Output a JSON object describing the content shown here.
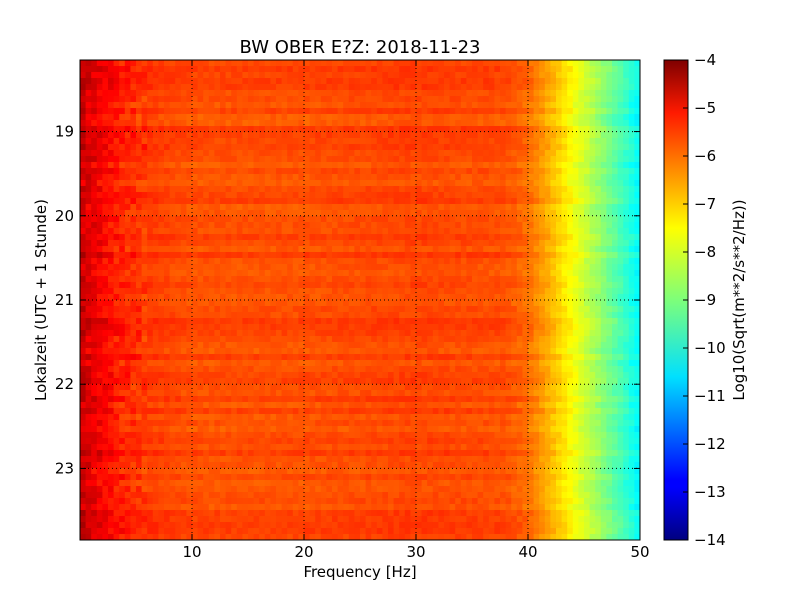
{
  "chart_data": {
    "type": "heatmap",
    "title": "BW OBER E?Z: 2018-11-23",
    "xlabel": "Frequency [Hz]",
    "ylabel": "Lokalzeit (UTC + 1 Stunde)",
    "xlim": [
      0,
      50
    ],
    "ylim": [
      18.15,
      23.85
    ],
    "y_inverted": true,
    "x_ticks": [
      10,
      20,
      30,
      40,
      50
    ],
    "y_ticks": [
      19,
      20,
      21,
      22,
      23
    ],
    "grid": true,
    "grid_style": "dotted",
    "colormap": "jet",
    "colorbar": {
      "label": "Log10(Sqrt(m**2/s**2/Hz))",
      "min": -14,
      "max": -4,
      "ticks": [
        -4,
        -5,
        -6,
        -7,
        -8,
        -9,
        -10,
        -11,
        -12,
        -13,
        -14
      ]
    },
    "spectrum_profile": {
      "frequency_hz": [
        0,
        2,
        4,
        6,
        10,
        20,
        30,
        38,
        40,
        42,
        44,
        46,
        48,
        50
      ],
      "log10_amplitude": [
        -4.7,
        -5.2,
        -5.6,
        -5.8,
        -6.0,
        -6.0,
        -5.9,
        -6.0,
        -6.3,
        -7.0,
        -7.8,
        -8.6,
        -9.4,
        -10.3
      ]
    }
  }
}
